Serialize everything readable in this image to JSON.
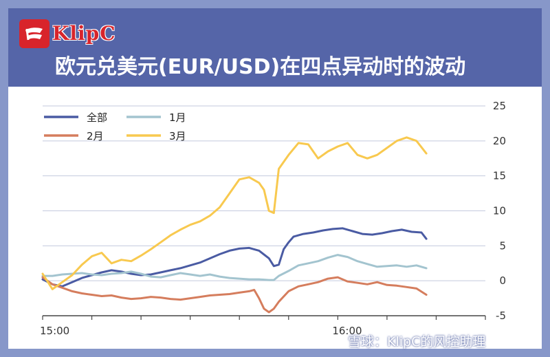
{
  "header": {
    "brand": "KlipC",
    "title": "欧元兑美元(EUR/USD)在四点异动时的波动"
  },
  "watermark": "雪球：KlipC的风控助理",
  "chart_data": {
    "type": "line",
    "title": "欧元兑美元(EUR/USD)在四点异动时的波动",
    "x_ticks": [
      "15:00",
      "16:00"
    ],
    "x_range": [
      "15:00",
      "16:30"
    ],
    "ylim": [
      -5,
      25
    ],
    "y_ticks": [
      -5,
      0,
      5,
      10,
      15,
      20,
      25
    ],
    "grid": true,
    "legend_position": "top-left",
    "series": [
      {
        "name": "全部",
        "color": "#4a5ba3",
        "points": [
          [
            0,
            0.2
          ],
          [
            2,
            -0.5
          ],
          [
            4,
            -0.8
          ],
          [
            6,
            -0.2
          ],
          [
            8,
            0.4
          ],
          [
            10,
            0.8
          ],
          [
            12,
            1.2
          ],
          [
            14,
            1.5
          ],
          [
            16,
            1.3
          ],
          [
            18,
            1
          ],
          [
            20,
            0.8
          ],
          [
            22,
            0.9
          ],
          [
            24,
            1.2
          ],
          [
            26,
            1.5
          ],
          [
            28,
            1.8
          ],
          [
            30,
            2.2
          ],
          [
            32,
            2.6
          ],
          [
            34,
            3.2
          ],
          [
            36,
            3.8
          ],
          [
            38,
            4.3
          ],
          [
            40,
            4.6
          ],
          [
            42,
            4.7
          ],
          [
            44,
            4.3
          ],
          [
            46,
            3.2
          ],
          [
            47,
            2.1
          ],
          [
            48,
            2.3
          ],
          [
            49,
            4.5
          ],
          [
            50,
            5.5
          ],
          [
            51,
            6.3
          ],
          [
            53,
            6.7
          ],
          [
            55,
            6.9
          ],
          [
            57,
            7.2
          ],
          [
            59,
            7.4
          ],
          [
            61,
            7.5
          ],
          [
            63,
            7.1
          ],
          [
            65,
            6.7
          ],
          [
            67,
            6.6
          ],
          [
            69,
            6.8
          ],
          [
            71,
            7.1
          ],
          [
            73,
            7.3
          ],
          [
            75,
            7.0
          ],
          [
            77,
            6.9
          ],
          [
            78,
            6.0
          ]
        ]
      },
      {
        "name": "1月",
        "color": "#a3c4cf",
        "points": [
          [
            0,
            0.7
          ],
          [
            2,
            0.7
          ],
          [
            4,
            0.9
          ],
          [
            6,
            1
          ],
          [
            8,
            1.1
          ],
          [
            10,
            0.9
          ],
          [
            12,
            0.8
          ],
          [
            14,
            1
          ],
          [
            16,
            1.1
          ],
          [
            18,
            1.3
          ],
          [
            20,
            1
          ],
          [
            22,
            0.6
          ],
          [
            24,
            0.5
          ],
          [
            26,
            0.8
          ],
          [
            28,
            1.1
          ],
          [
            30,
            0.9
          ],
          [
            32,
            0.7
          ],
          [
            34,
            0.9
          ],
          [
            36,
            0.6
          ],
          [
            38,
            0.4
          ],
          [
            40,
            0.3
          ],
          [
            42,
            0.2
          ],
          [
            44,
            0.2
          ],
          [
            46,
            0.1
          ],
          [
            47,
            0.1
          ],
          [
            48,
            0.7
          ],
          [
            50,
            1.4
          ],
          [
            52,
            2.2
          ],
          [
            54,
            2.5
          ],
          [
            56,
            2.8
          ],
          [
            58,
            3.3
          ],
          [
            60,
            3.7
          ],
          [
            62,
            3.4
          ],
          [
            64,
            2.8
          ],
          [
            66,
            2.4
          ],
          [
            68,
            2
          ],
          [
            70,
            2.1
          ],
          [
            72,
            2.2
          ],
          [
            74,
            2
          ],
          [
            76,
            2.2
          ],
          [
            78,
            1.8
          ]
        ]
      },
      {
        "name": "2月",
        "color": "#d57d5d",
        "points": [
          [
            0,
            0.5
          ],
          [
            2,
            -0.5
          ],
          [
            4,
            -1
          ],
          [
            6,
            -1.5
          ],
          [
            8,
            -1.8
          ],
          [
            10,
            -2
          ],
          [
            12,
            -2.2
          ],
          [
            14,
            -2.1
          ],
          [
            16,
            -2.4
          ],
          [
            18,
            -2.6
          ],
          [
            20,
            -2.5
          ],
          [
            22,
            -2.3
          ],
          [
            24,
            -2.4
          ],
          [
            26,
            -2.6
          ],
          [
            28,
            -2.7
          ],
          [
            30,
            -2.5
          ],
          [
            32,
            -2.3
          ],
          [
            34,
            -2.1
          ],
          [
            36,
            -2
          ],
          [
            38,
            -1.9
          ],
          [
            40,
            -1.7
          ],
          [
            42,
            -1.5
          ],
          [
            43,
            -1.3
          ],
          [
            44,
            -2.5
          ],
          [
            45,
            -4
          ],
          [
            46,
            -4.5
          ],
          [
            47,
            -4
          ],
          [
            48,
            -3
          ],
          [
            50,
            -1.5
          ],
          [
            52,
            -0.8
          ],
          [
            54,
            -0.5
          ],
          [
            56,
            -0.2
          ],
          [
            58,
            0.3
          ],
          [
            60,
            0.5
          ],
          [
            62,
            -0.1
          ],
          [
            64,
            -0.3
          ],
          [
            66,
            -0.5
          ],
          [
            68,
            -0.2
          ],
          [
            70,
            -0.6
          ],
          [
            72,
            -0.7
          ],
          [
            74,
            -0.9
          ],
          [
            76,
            -1.1
          ],
          [
            78,
            -2
          ]
        ]
      },
      {
        "name": "3月",
        "color": "#f8c94f",
        "points": [
          [
            0,
            1
          ],
          [
            2,
            -1.2
          ],
          [
            4,
            -0.2
          ],
          [
            6,
            0.8
          ],
          [
            8,
            2.3
          ],
          [
            10,
            3.5
          ],
          [
            12,
            4
          ],
          [
            14,
            2.5
          ],
          [
            16,
            3
          ],
          [
            18,
            2.8
          ],
          [
            20,
            3.6
          ],
          [
            22,
            4.5
          ],
          [
            24,
            5.5
          ],
          [
            26,
            6.5
          ],
          [
            28,
            7.3
          ],
          [
            30,
            8
          ],
          [
            32,
            8.5
          ],
          [
            34,
            9.3
          ],
          [
            36,
            10.5
          ],
          [
            38,
            12.5
          ],
          [
            40,
            14.5
          ],
          [
            42,
            14.8
          ],
          [
            44,
            14
          ],
          [
            45,
            13
          ],
          [
            46,
            10
          ],
          [
            47,
            9.7
          ],
          [
            48,
            16
          ],
          [
            50,
            18
          ],
          [
            52,
            19.7
          ],
          [
            54,
            19.5
          ],
          [
            56,
            17.5
          ],
          [
            58,
            18.5
          ],
          [
            60,
            19.2
          ],
          [
            62,
            19.7
          ],
          [
            64,
            18
          ],
          [
            66,
            17.5
          ],
          [
            68,
            18
          ],
          [
            70,
            19
          ],
          [
            72,
            20
          ],
          [
            74,
            20.5
          ],
          [
            76,
            20
          ],
          [
            78,
            18.2
          ]
        ]
      }
    ]
  }
}
